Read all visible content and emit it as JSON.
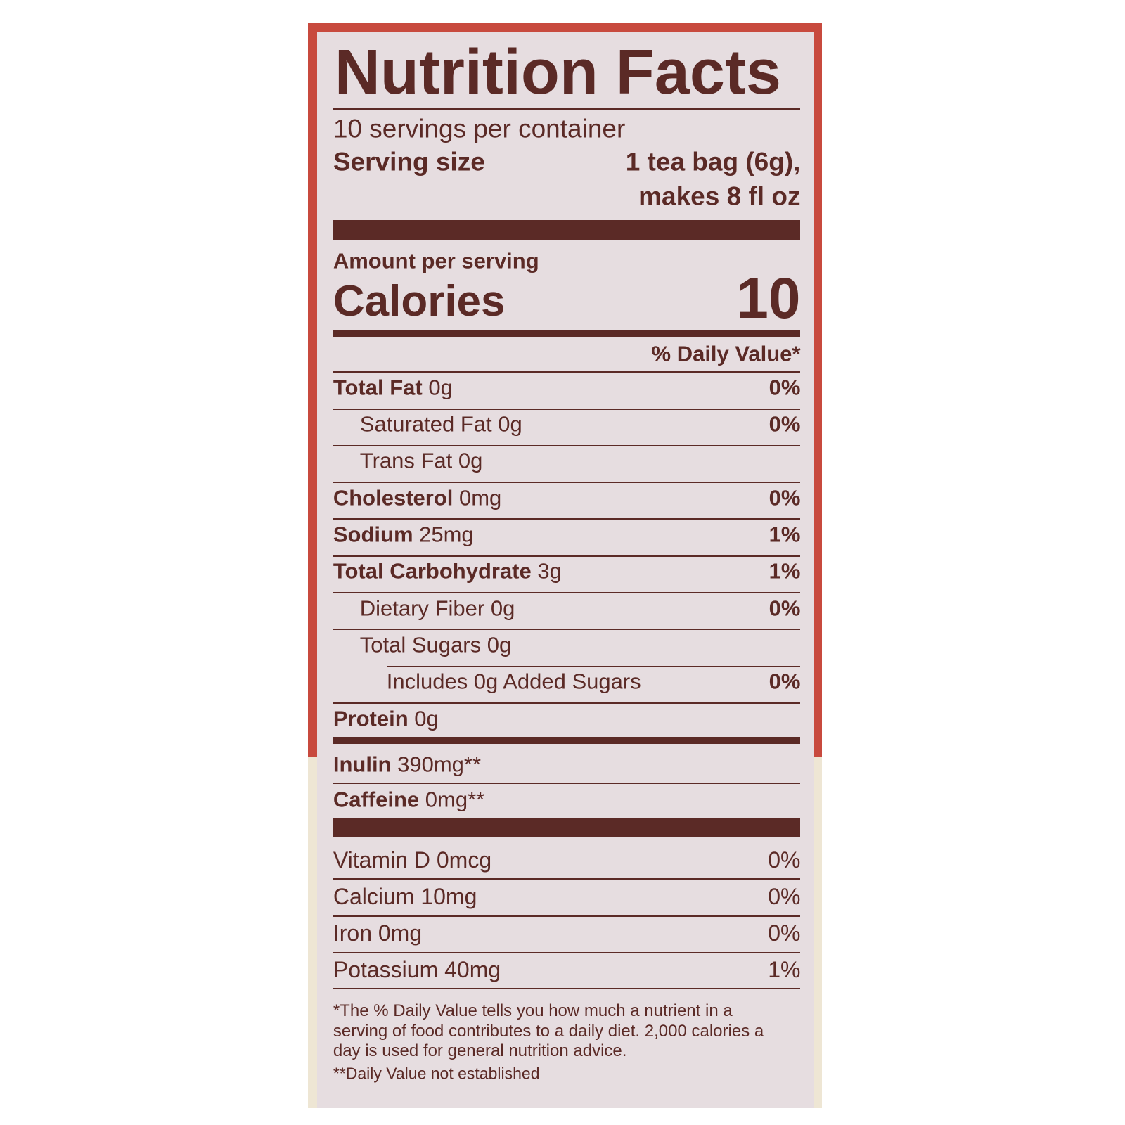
{
  "title": "Nutrition Facts",
  "servings": "10 servings per container",
  "serving_size": {
    "label": "Serving size",
    "value": [
      "1 tea bag (6g),",
      "makes 8 fl oz"
    ]
  },
  "amount_per_serving": "Amount per serving",
  "calories": {
    "label": "Calories",
    "value": "10"
  },
  "daily_value_header": "% Daily Value*",
  "nutrients": [
    {
      "name": "Total Fat",
      "amount": "0g",
      "dv": "0%",
      "level": 0
    },
    {
      "name": "Saturated Fat",
      "amount": "0g",
      "dv": "0%",
      "level": 1
    },
    {
      "name": "Trans Fat",
      "amount": "0g",
      "level": 1
    },
    {
      "name": "Cholesterol",
      "amount": "0mg",
      "dv": "0%",
      "level": 0
    },
    {
      "name": "Sodium",
      "amount": "25mg",
      "dv": "1%",
      "level": 0
    },
    {
      "name": "Total Carbohydrate",
      "amount": "3g",
      "dv": "1%",
      "level": 0
    },
    {
      "name": "Dietary Fiber",
      "amount": "0g",
      "dv": "0%",
      "level": 1
    },
    {
      "name": "Total Sugars",
      "amount": "0g",
      "level": 1
    },
    {
      "name": "Includes 0g Added Sugars",
      "dv": "0%",
      "level": 2
    },
    {
      "name": "Protein",
      "amount": "0g",
      "level": 0
    }
  ],
  "extras": [
    {
      "name": "Inulin",
      "amount": "390mg**"
    },
    {
      "name": "Caffeine",
      "amount": "0mg**"
    }
  ],
  "vitamins": [
    {
      "text": "Vitamin D 0mcg",
      "dv": "0%"
    },
    {
      "text": "Calcium 10mg",
      "dv": "0%"
    },
    {
      "text": "Iron 0mg",
      "dv": "0%"
    },
    {
      "text": "Potassium 40mg",
      "dv": "1%"
    }
  ],
  "footnotes": [
    [
      "*The % Daily Value tells you how much a nutrient in a",
      "serving of food contributes to a daily diet. 2,000 calories a",
      "day is used for general nutrition advice."
    ],
    [
      "**Daily Value not established"
    ]
  ]
}
